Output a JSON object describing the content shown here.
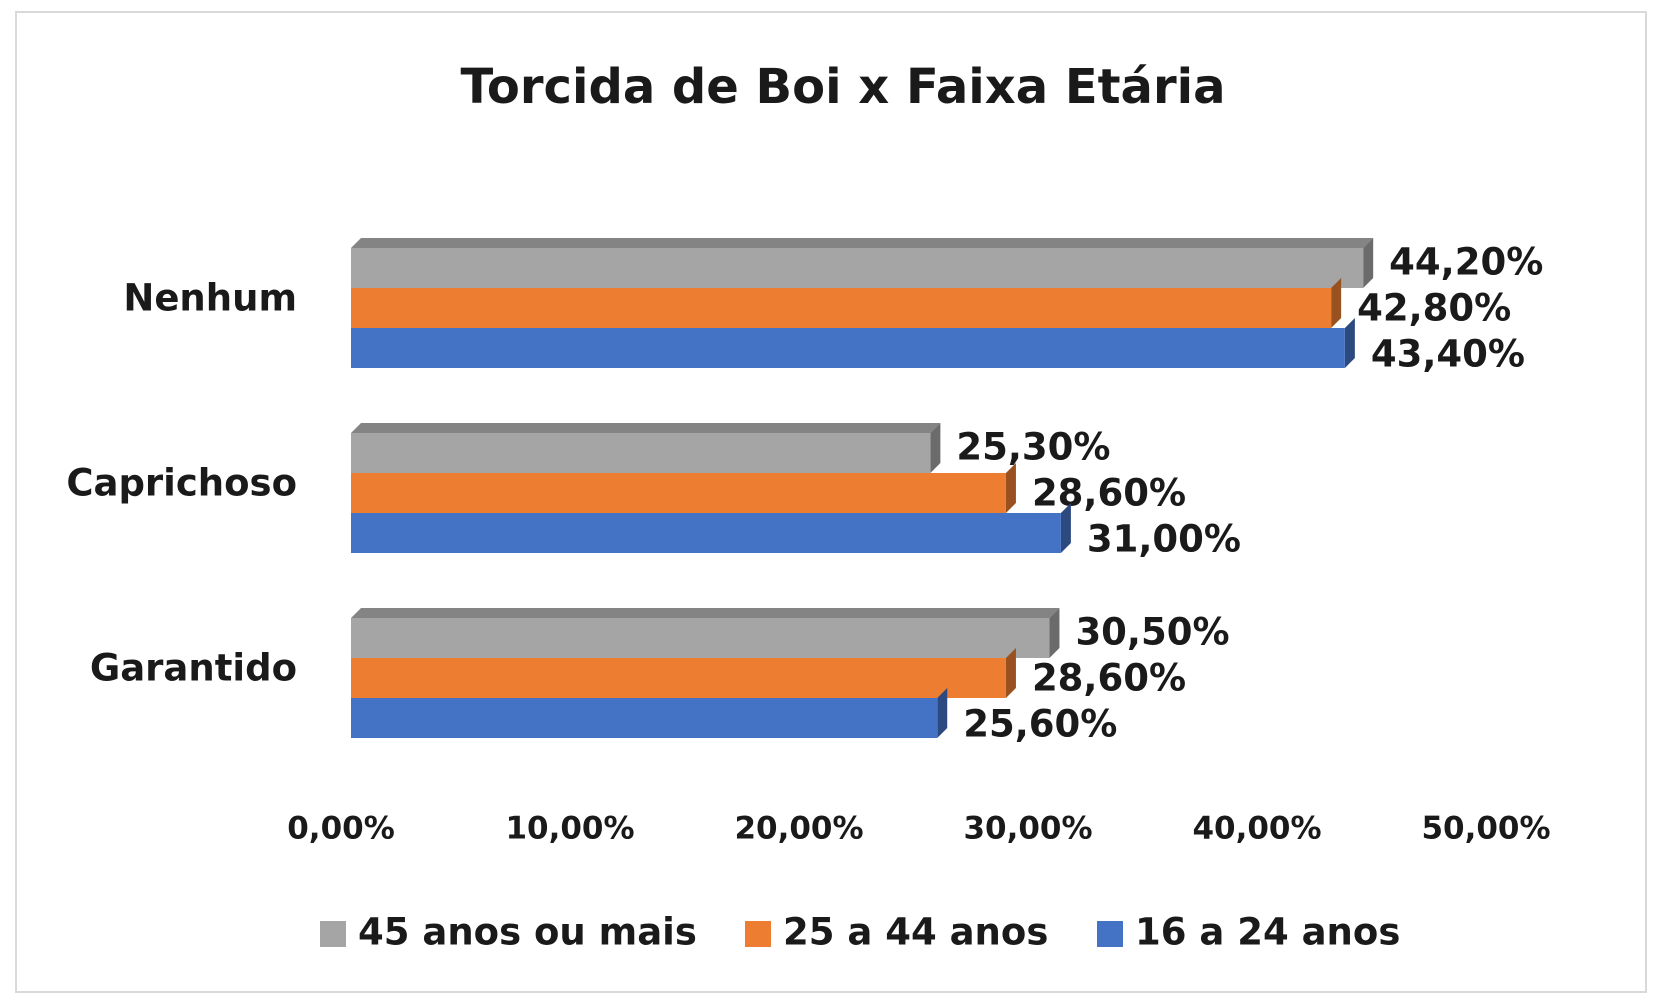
{
  "chart_data": {
    "type": "bar",
    "orientation": "horizontal",
    "title": "Torcida de Boi x Faixa Etária",
    "categories": [
      "Nenhum",
      "Caprichoso",
      "Garantido"
    ],
    "series": [
      {
        "name": "45 anos ou mais",
        "color": "#a5a5a5",
        "values": [
          44.2,
          25.3,
          30.5
        ],
        "value_labels": [
          "44,20%",
          "25,30%",
          "30,50%"
        ]
      },
      {
        "name": "25 a 44 anos",
        "color": "#ed7d31",
        "values": [
          42.8,
          28.6,
          28.6
        ],
        "value_labels": [
          "42,80%",
          "28,60%",
          "28,60%"
        ]
      },
      {
        "name": "16 a 24 anos",
        "color": "#4472c4",
        "values": [
          43.4,
          31.0,
          25.6
        ],
        "value_labels": [
          "43,40%",
          "31,00%",
          "25,60%"
        ]
      }
    ],
    "xlim": [
      0,
      50
    ],
    "xticks": [
      {
        "value": 0,
        "label": "0,00%"
      },
      {
        "value": 10,
        "label": "10,00%"
      },
      {
        "value": 20,
        "label": "20,00%"
      },
      {
        "value": 30,
        "label": "30,00%"
      },
      {
        "value": 40,
        "label": "40,00%"
      },
      {
        "value": 50,
        "label": "50,00%"
      }
    ],
    "grid": false,
    "legend": "bottom"
  }
}
